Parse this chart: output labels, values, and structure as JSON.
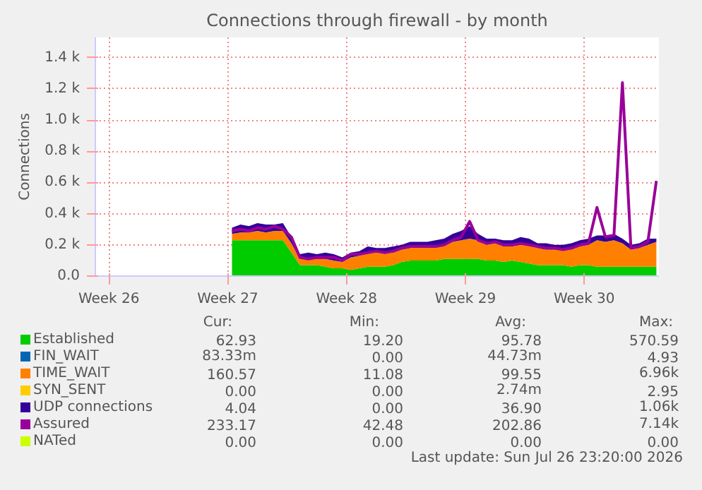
{
  "chart_data": {
    "type": "area",
    "title": "Connections through firewall - by month",
    "ylabel": "Connections",
    "stacked": true,
    "grid": true,
    "legend": "bottom",
    "x": [
      "2026-07-02T06:00",
      "2026-07-02T18:00",
      "2026-07-03T06:00",
      "2026-07-03T18:00",
      "2026-07-04T06:00",
      "2026-07-04T18:00",
      "2026-07-05T06:00",
      "2026-07-05T18:00",
      "2026-07-06T06:00",
      "2026-07-06T18:00",
      "2026-07-07T06:00",
      "2026-07-07T18:00",
      "2026-07-08T06:00",
      "2026-07-08T18:00",
      "2026-07-09T06:00",
      "2026-07-09T18:00",
      "2026-07-10T06:00",
      "2026-07-10T18:00",
      "2026-07-11T06:00",
      "2026-07-11T18:00",
      "2026-07-12T06:00",
      "2026-07-12T18:00",
      "2026-07-13T06:00",
      "2026-07-13T18:00",
      "2026-07-14T06:00",
      "2026-07-14T18:00",
      "2026-07-15T06:00",
      "2026-07-15T18:00",
      "2026-07-16T06:00",
      "2026-07-16T18:00",
      "2026-07-17T06:00",
      "2026-07-17T18:00",
      "2026-07-18T06:00",
      "2026-07-18T18:00",
      "2026-07-19T06:00",
      "2026-07-19T18:00",
      "2026-07-20T06:00",
      "2026-07-20T18:00",
      "2026-07-21T06:00",
      "2026-07-21T18:00",
      "2026-07-22T06:00",
      "2026-07-22T18:00",
      "2026-07-23T06:00",
      "2026-07-23T18:00",
      "2026-07-24T06:00",
      "2026-07-24T18:00",
      "2026-07-25T06:00",
      "2026-07-25T18:00",
      "2026-07-26T06:00",
      "2026-07-26T18:00",
      "2026-07-27T06:00"
    ],
    "xlim": [
      "2026-06-24T04:48",
      "2026-07-27T09:36"
    ],
    "xticks": [
      {
        "value": "2026-06-25",
        "label": "Week 26"
      },
      {
        "value": "2026-07-02",
        "label": "Week 27"
      },
      {
        "value": "2026-07-09",
        "label": "Week 28"
      },
      {
        "value": "2026-07-16",
        "label": "Week 29"
      },
      {
        "value": "2026-07-23",
        "label": "Week 30"
      }
    ],
    "ylim": [
      0,
      1530
    ],
    "yticks": [
      {
        "value": 0,
        "label": "0.0"
      },
      {
        "value": 200,
        "label": "0.2 k"
      },
      {
        "value": 400,
        "label": "0.4 k"
      },
      {
        "value": 600,
        "label": "0.6 k"
      },
      {
        "value": 800,
        "label": "0.8 k"
      },
      {
        "value": 1000,
        "label": "1.0 k"
      },
      {
        "value": 1200,
        "label": "1.2 k"
      },
      {
        "value": 1400,
        "label": "1.4 k"
      }
    ],
    "series": [
      {
        "name": "Established",
        "color": "#00cc00",
        "values": [
          230,
          230,
          230,
          230,
          230,
          230,
          230,
          150,
          70,
          70,
          70,
          60,
          50,
          50,
          40,
          50,
          60,
          60,
          60,
          70,
          90,
          100,
          100,
          100,
          100,
          110,
          110,
          110,
          110,
          110,
          100,
          100,
          90,
          100,
          90,
          80,
          70,
          70,
          70,
          70,
          60,
          70,
          70,
          60,
          60,
          60,
          60,
          60,
          60,
          60,
          60
        ]
      },
      {
        "name": "FIN_WAIT",
        "color": "#0066b3",
        "values": [
          null,
          null,
          null,
          null,
          null,
          null,
          null,
          null,
          null,
          null,
          null,
          null,
          null,
          null,
          null,
          null,
          null,
          null,
          null,
          null,
          null,
          null,
          null,
          null,
          null,
          null,
          null,
          null,
          null,
          null,
          null,
          null,
          null,
          null,
          null,
          null,
          null,
          null,
          null,
          null,
          null,
          null,
          null,
          null,
          null,
          null,
          null,
          null,
          null,
          null,
          null
        ]
      },
      {
        "name": "TIME_WAIT",
        "color": "#ff8000",
        "values": [
          40,
          50,
          50,
          60,
          50,
          60,
          60,
          60,
          40,
          40,
          40,
          50,
          50,
          40,
          80,
          80,
          90,
          90,
          90,
          80,
          80,
          80,
          90,
          80,
          90,
          90,
          110,
          120,
          130,
          120,
          100,
          110,
          100,
          90,
          110,
          120,
          110,
          100,
          100,
          100,
          110,
          120,
          130,
          170,
          160,
          170,
          150,
          110,
          120,
          140,
          160
        ]
      },
      {
        "name": "SYN_SENT",
        "color": "#ffcc00",
        "values": [
          null,
          null,
          null,
          null,
          null,
          null,
          null,
          null,
          null,
          null,
          null,
          null,
          null,
          null,
          null,
          null,
          null,
          null,
          null,
          null,
          null,
          null,
          null,
          null,
          null,
          null,
          null,
          null,
          null,
          null,
          null,
          null,
          null,
          null,
          null,
          null,
          null,
          null,
          null,
          null,
          null,
          null,
          null,
          null,
          null,
          null,
          null,
          null,
          null,
          null,
          null
        ]
      },
      {
        "name": "UDP connections",
        "color": "#330099",
        "values": [
          40,
          50,
          40,
          50,
          50,
          40,
          50,
          40,
          30,
          40,
          30,
          40,
          40,
          30,
          30,
          30,
          40,
          30,
          30,
          40,
          30,
          40,
          30,
          40,
          40,
          40,
          50,
          60,
          80,
          40,
          40,
          30,
          40,
          40,
          50,
          40,
          30,
          40,
          30,
          30,
          40,
          40,
          40,
          30,
          40,
          40,
          30,
          30,
          30,
          40,
          20
        ]
      },
      {
        "name": "Assured",
        "type": "line",
        "color": "#990099",
        "values": [
          290,
          300,
          290,
          310,
          300,
          320,
          300,
          250,
          120,
          110,
          120,
          120,
          120,
          100,
          140,
          140,
          150,
          160,
          150,
          160,
          180,
          190,
          190,
          190,
          190,
          200,
          230,
          250,
          350,
          230,
          210,
          220,
          200,
          200,
          210,
          200,
          190,
          180,
          180,
          170,
          180,
          200,
          210,
          440,
          250,
          260,
          1240,
          180,
          190,
          220,
          610
        ]
      },
      {
        "name": "NATed",
        "type": "line",
        "color": "#ccff00",
        "values": [
          null,
          null,
          null,
          null,
          null,
          null,
          null,
          null,
          null,
          null,
          null,
          null,
          null,
          null,
          null,
          null,
          null,
          null,
          null,
          null,
          null,
          null,
          null,
          null,
          null,
          null,
          null,
          null,
          null,
          null,
          null,
          null,
          null,
          null,
          null,
          null,
          null,
          null,
          null,
          null,
          null,
          null,
          null,
          null,
          null,
          null,
          null,
          null,
          null,
          null,
          null
        ]
      }
    ],
    "annotations": [
      "Cur:",
      "Min:",
      "Avg:",
      "Max:",
      "62.93",
      "19.20",
      "95.78",
      "570.59",
      "83.33m",
      "0.00",
      "44.73m",
      "4.93",
      "160.57",
      "11.08",
      "99.55",
      "6.96k",
      "0.00",
      "0.00",
      "2.74m",
      "2.95",
      "4.04",
      "0.00",
      "36.90",
      "1.06k",
      "233.17",
      "42.48",
      "202.86",
      "7.14k",
      "0.00",
      "0.00",
      "0.00",
      "0.00",
      "Last update: Sun Jul 26 23:20:00 2026"
    ]
  }
}
